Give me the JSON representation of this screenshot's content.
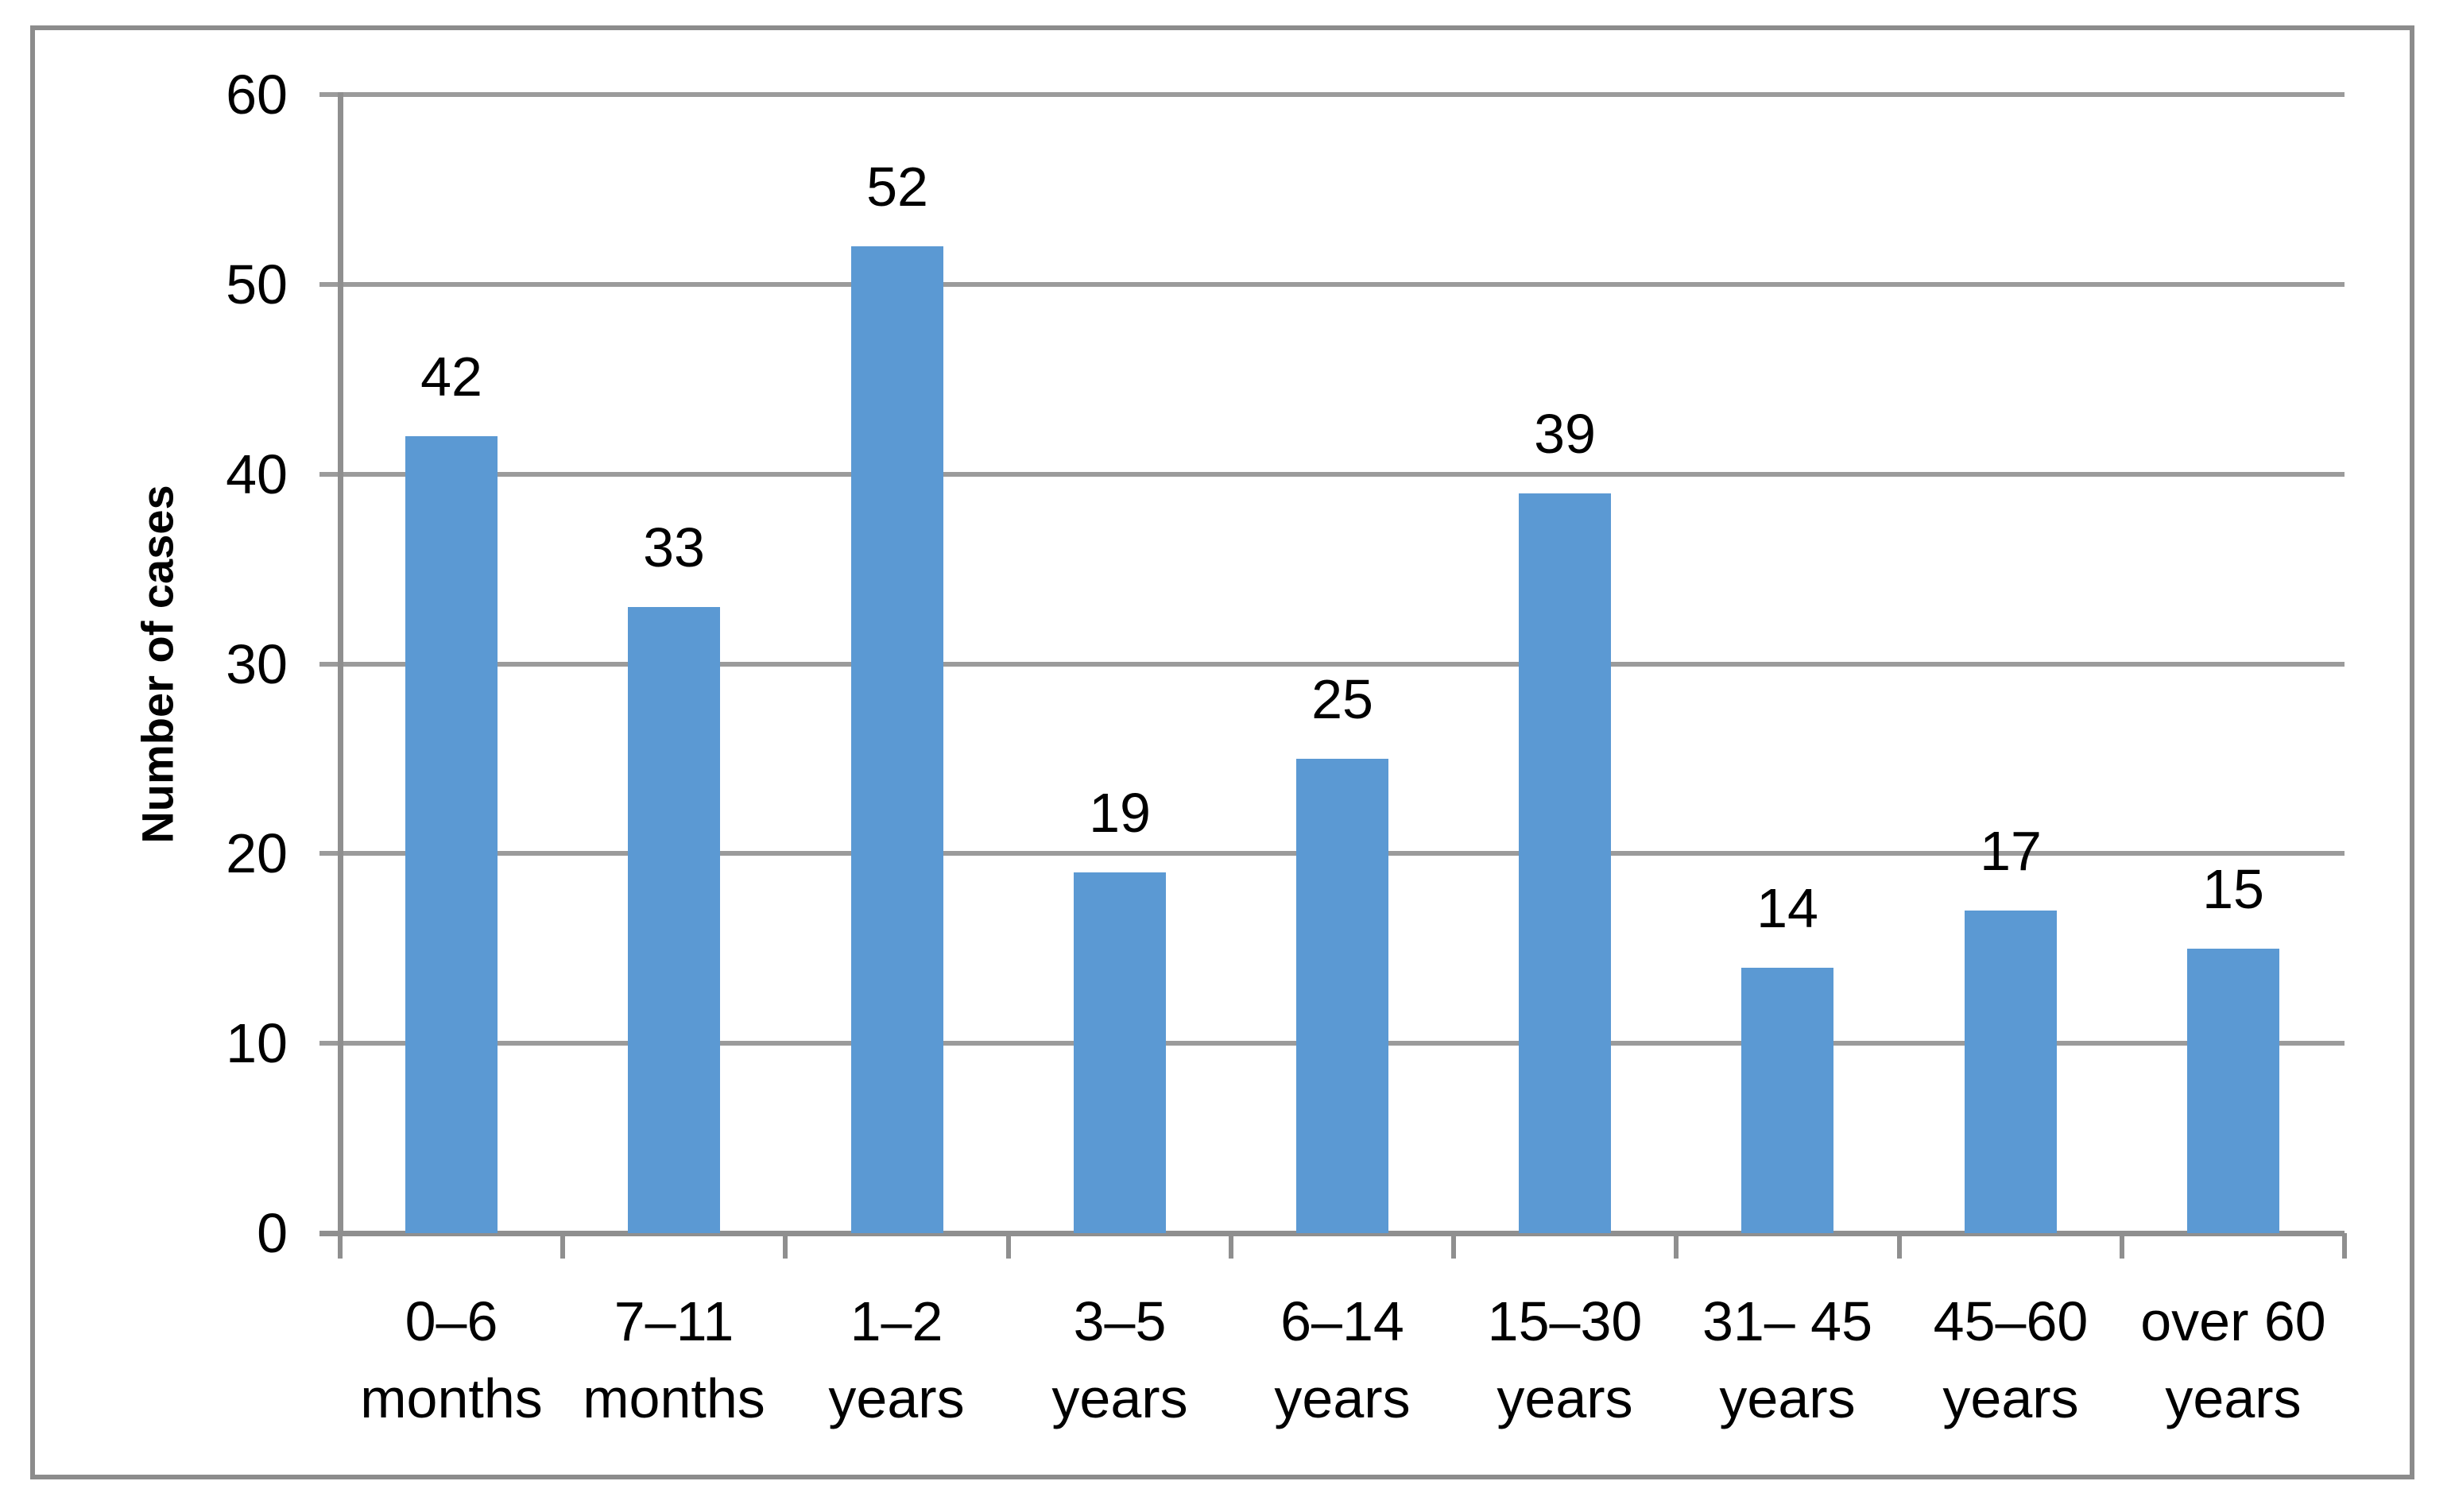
{
  "chart_data": {
    "type": "bar",
    "title": "",
    "xlabel": "",
    "ylabel": "Number of cases",
    "categories": [
      "0–6 months",
      "7–11 months",
      "1–2 years",
      "3–5 years",
      "6–14 years",
      "15–30 years",
      "31– 45 years",
      "45–60 years",
      "over 60 years"
    ],
    "category_lines": [
      [
        "0–6",
        "months"
      ],
      [
        "7–11",
        "months"
      ],
      [
        "1–2",
        "years"
      ],
      [
        "3–5",
        "years"
      ],
      [
        "6–14",
        "years"
      ],
      [
        "15–30",
        "years"
      ],
      [
        "31– 45",
        "years"
      ],
      [
        "45–60",
        "years"
      ],
      [
        "over 60",
        "years"
      ]
    ],
    "values": [
      42,
      33,
      52,
      19,
      25,
      39,
      14,
      17,
      15
    ],
    "data_labels": [
      "42",
      "33",
      "52",
      "19",
      "25",
      "39",
      "14",
      "17",
      "15"
    ],
    "ylim": [
      0,
      60
    ],
    "yticks": [
      0,
      10,
      20,
      30,
      40,
      50,
      60
    ],
    "ytick_labels": [
      "0",
      "10",
      "20",
      "30",
      "40",
      "50",
      "60"
    ],
    "grid": true,
    "legend": "none",
    "colors": {
      "bar": "#5B99D3",
      "gridline": "#9B9B9B",
      "axis": "#8F8F8F",
      "frame_border": "#8C8C8C",
      "text": "#000000",
      "background": "#FFFFFF"
    }
  }
}
